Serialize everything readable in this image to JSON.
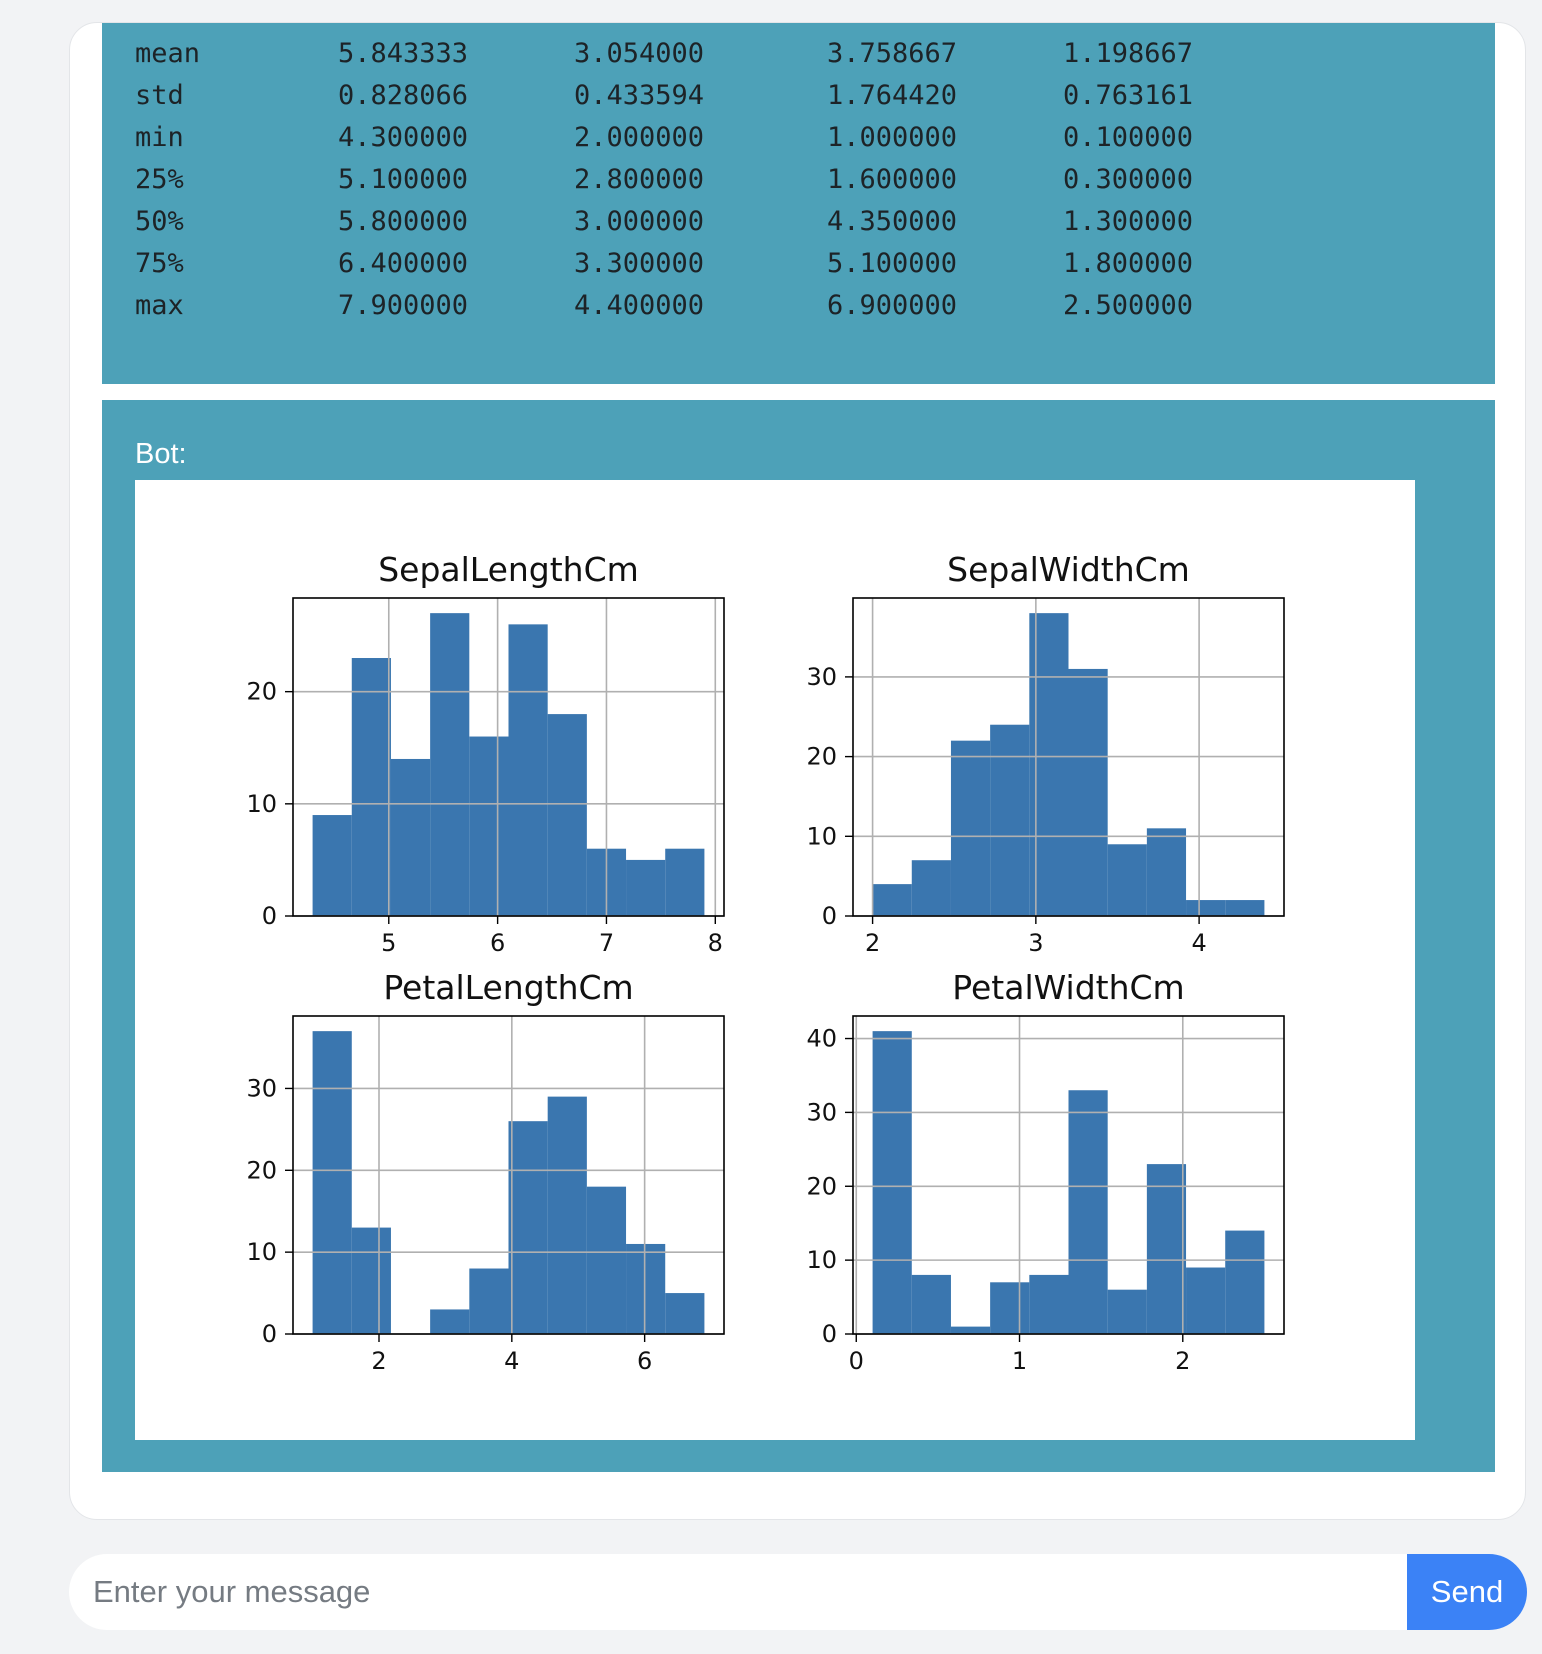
{
  "stats": {
    "rows": [
      {
        "label": "mean",
        "values": [
          "5.843333",
          "3.054000",
          "3.758667",
          "1.198667"
        ]
      },
      {
        "label": "std",
        "values": [
          "0.828066",
          "0.433594",
          "1.764420",
          "0.763161"
        ]
      },
      {
        "label": "min",
        "values": [
          "4.300000",
          "2.000000",
          "1.000000",
          "0.100000"
        ]
      },
      {
        "label": "25%",
        "values": [
          "5.100000",
          "2.800000",
          "1.600000",
          "0.300000"
        ]
      },
      {
        "label": "50%",
        "values": [
          "5.800000",
          "3.000000",
          "4.350000",
          "1.300000"
        ]
      },
      {
        "label": "75%",
        "values": [
          "6.400000",
          "3.300000",
          "5.100000",
          "1.800000"
        ]
      },
      {
        "label": "max",
        "values": [
          "7.900000",
          "4.400000",
          "6.900000",
          "2.500000"
        ]
      }
    ]
  },
  "bot_message": {
    "label": "Bot:"
  },
  "input": {
    "placeholder": "Enter your message",
    "value": ""
  },
  "send_button": {
    "label": "Send"
  },
  "colors": {
    "message_bg": "#4da1b8",
    "bar_fill": "#3a76af",
    "send_bg": "#3b82f6"
  },
  "chart_data": [
    {
      "type": "bar",
      "title": "SepalLengthCm",
      "bin_edges": [
        4.3,
        4.66,
        5.02,
        5.38,
        5.74,
        6.1,
        6.46,
        6.82,
        7.18,
        7.54,
        7.9
      ],
      "counts": [
        9,
        23,
        14,
        27,
        16,
        26,
        18,
        6,
        5,
        6
      ],
      "xlim": [
        4.12,
        8.08
      ],
      "ylim": [
        0,
        28.35
      ],
      "xticks": [
        5,
        6,
        7,
        8
      ],
      "yticks": [
        0,
        10,
        20
      ],
      "grid": true
    },
    {
      "type": "bar",
      "title": "SepalWidthCm",
      "bin_edges": [
        2.0,
        2.24,
        2.48,
        2.72,
        2.96,
        3.2,
        3.44,
        3.68,
        3.92,
        4.16,
        4.4
      ],
      "counts": [
        4,
        7,
        22,
        24,
        38,
        31,
        9,
        11,
        2,
        2
      ],
      "xlim": [
        1.88,
        4.52
      ],
      "ylim": [
        0,
        39.9
      ],
      "xticks": [
        2,
        3,
        4
      ],
      "yticks": [
        0,
        10,
        20,
        30
      ],
      "grid": true
    },
    {
      "type": "bar",
      "title": "PetalLengthCm",
      "bin_edges": [
        1.0,
        1.59,
        2.18,
        2.77,
        3.36,
        3.95,
        4.54,
        5.13,
        5.72,
        6.31,
        6.9
      ],
      "counts": [
        37,
        13,
        0,
        3,
        8,
        26,
        29,
        18,
        11,
        5
      ],
      "xlim": [
        0.705,
        7.195
      ],
      "ylim": [
        0,
        38.85
      ],
      "xticks": [
        2,
        4,
        6
      ],
      "yticks": [
        0,
        10,
        20,
        30
      ],
      "grid": true
    },
    {
      "type": "bar",
      "title": "PetalWidthCm",
      "bin_edges": [
        0.1,
        0.34,
        0.58,
        0.82,
        1.06,
        1.3,
        1.54,
        1.78,
        2.02,
        2.26,
        2.5
      ],
      "counts": [
        41,
        8,
        1,
        7,
        8,
        33,
        6,
        23,
        9,
        14
      ],
      "xlim": [
        -0.02,
        2.62
      ],
      "ylim": [
        0,
        43.05
      ],
      "xticks": [
        0,
        1,
        2
      ],
      "yticks": [
        0,
        10,
        20,
        30,
        40
      ],
      "grid": true
    }
  ]
}
